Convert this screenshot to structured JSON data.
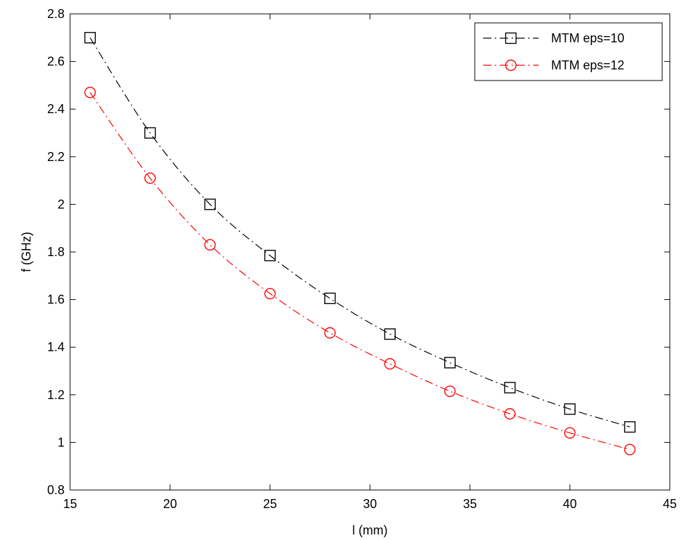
{
  "chart_data": {
    "type": "line",
    "title": "",
    "xlabel": "l (mm)",
    "ylabel": "f  (GHz)",
    "xlim": [
      15,
      45
    ],
    "ylim": [
      0.8,
      2.8
    ],
    "xticks": [
      15,
      20,
      25,
      30,
      35,
      40,
      45
    ],
    "yticks": [
      0.8,
      1,
      1.2,
      1.4,
      1.6,
      1.8,
      2,
      2.2,
      2.4,
      2.6,
      2.8
    ],
    "xtick_labels": [
      "15",
      "20",
      "25",
      "30",
      "35",
      "40",
      "45"
    ],
    "ytick_labels": [
      "0.8",
      "1",
      "1.2",
      "1.4",
      "1.6",
      "1.8",
      "2",
      "2.2",
      "2.4",
      "2.6",
      "2.8"
    ],
    "grid": false,
    "legend_position": "top-right",
    "x": [
      16,
      19,
      22,
      25,
      28,
      31,
      34,
      37,
      40,
      43
    ],
    "series": [
      {
        "name": "MTM eps=10",
        "color": "#000000",
        "marker": "square",
        "line_style": "dash-dot",
        "values": [
          2.7,
          2.3,
          2.0,
          1.785,
          1.605,
          1.455,
          1.335,
          1.23,
          1.14,
          1.065
        ]
      },
      {
        "name": "MTM eps=12",
        "color": "#ff0000",
        "marker": "circle",
        "line_style": "dash-dot",
        "values": [
          2.47,
          2.11,
          1.83,
          1.625,
          1.46,
          1.33,
          1.215,
          1.12,
          1.04,
          0.97
        ]
      }
    ]
  }
}
